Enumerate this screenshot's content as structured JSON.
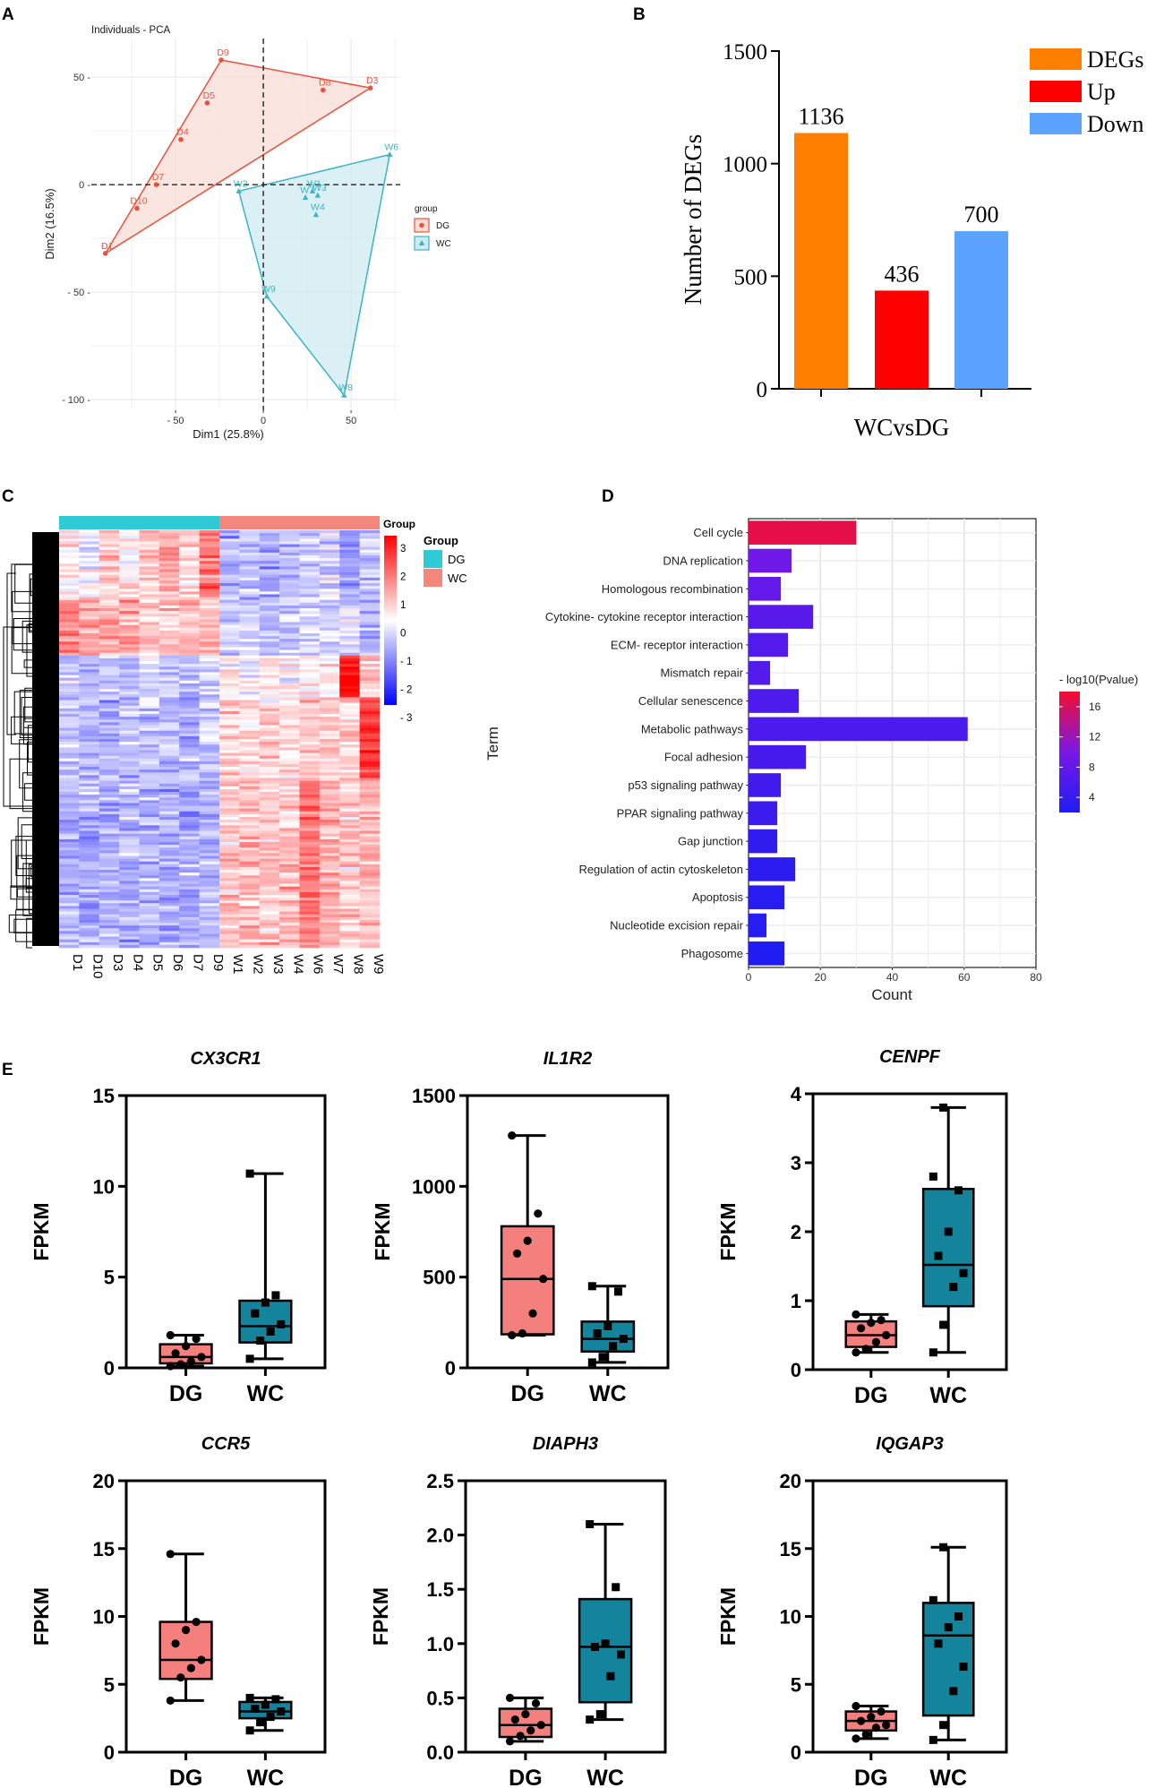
{
  "panel_labels": {
    "a": "A",
    "b": "B",
    "c": "C",
    "d": "D",
    "e": "E"
  },
  "colors": {
    "dg": "#E8533F",
    "wc": "#3BB3C8",
    "dg_fill": "#F9DCD5",
    "wc_fill": "#CDEBF1",
    "degs": "#FF7F00",
    "up": "#FF0000",
    "down": "#5BA3FF",
    "heat_dg": "#2ECBD6",
    "heat_wc": "#F3877C",
    "box_dg": "#F4807E",
    "box_wc": "#14849C"
  },
  "chart_data": [
    {
      "id": "A",
      "type": "scatter",
      "title": "Individuals - PCA",
      "xlabel": "Dim1 (25.8%)",
      "ylabel": "Dim2 (16.5%)",
      "xlim": [
        -98,
        78
      ],
      "ylim": [
        -105,
        68
      ],
      "xticks": [
        -50,
        0,
        50
      ],
      "xtick_labels": [
        "- 50",
        "0",
        "50"
      ],
      "yticks": [
        50,
        0,
        -50,
        -100
      ],
      "ytick_labels": [
        "50 -",
        "0 -",
        "- 50 -",
        "- 100 -"
      ],
      "legend_title": "group",
      "series": [
        {
          "name": "DG",
          "points": [
            {
              "label": "D1",
              "x": -90,
              "y": -32
            },
            {
              "label": "D10",
              "x": -72,
              "y": -11
            },
            {
              "label": "D7",
              "x": -61,
              "y": 0
            },
            {
              "label": "D4",
              "x": -47,
              "y": 21
            },
            {
              "label": "D5",
              "x": -32,
              "y": 38
            },
            {
              "label": "D9",
              "x": -24,
              "y": 58
            },
            {
              "label": "D8",
              "x": 34,
              "y": 44
            },
            {
              "label": "D3",
              "x": 61,
              "y": 45
            }
          ],
          "hull": [
            "D1",
            "D9",
            "D3"
          ]
        },
        {
          "name": "WC",
          "points": [
            {
              "label": "W2",
              "x": -14,
              "y": -3
            },
            {
              "label": "W6",
              "x": 72,
              "y": 14
            },
            {
              "label": "W7",
              "x": 24,
              "y": -6
            },
            {
              "label": "W1",
              "x": 28,
              "y": -3
            },
            {
              "label": "W3",
              "x": 31,
              "y": -5
            },
            {
              "label": "W4",
              "x": 30,
              "y": -14
            },
            {
              "label": "W9",
              "x": 2,
              "y": -52
            },
            {
              "label": "W8",
              "x": 46,
              "y": -98
            }
          ],
          "hull": [
            "W2",
            "W6",
            "W8",
            "W9"
          ]
        }
      ]
    },
    {
      "id": "B",
      "type": "bar",
      "categories": [
        "DEGs",
        "Up",
        "Down"
      ],
      "values": [
        1136,
        436,
        700
      ],
      "data_labels": [
        "1136",
        "436",
        "700"
      ],
      "xlabel": "WCvsDG",
      "ylabel": "Number of DEGs",
      "ylim": [
        0,
        1500
      ],
      "yticks": [
        0,
        500,
        1000,
        1500
      ],
      "ytick_labels": [
        "0",
        "500",
        "1000",
        "1500"
      ],
      "legend": [
        "DEGs",
        "Up",
        "Down"
      ]
    },
    {
      "id": "C",
      "type": "heatmap",
      "columns": [
        "D1",
        "D10",
        "D3",
        "D4",
        "D5",
        "D6",
        "D7",
        "D9",
        "W1",
        "W2",
        "W3",
        "W4",
        "W6",
        "W7",
        "W8",
        "W9"
      ],
      "groups": [
        "DG",
        "DG",
        "DG",
        "DG",
        "DG",
        "DG",
        "DG",
        "DG",
        "WC",
        "WC",
        "WC",
        "WC",
        "WC",
        "WC",
        "WC",
        "WC"
      ],
      "annotation_title": "Group",
      "legend_title": "Group",
      "legend": [
        "DG",
        "WC"
      ],
      "color_scale": {
        "min": -3,
        "max": 3,
        "ticks": [
          3,
          2,
          1,
          0,
          -1,
          -2,
          -3
        ],
        "tick_labels": [
          "3",
          "2",
          "1",
          "0",
          "- 1",
          "- 2",
          "- 3"
        ],
        "low": "#0000FF",
        "mid": "#FFFFFF",
        "high": "#FF0000"
      },
      "row_blocks": [
        {
          "share": 0.16,
          "pattern": [
            0.2,
            -0.2,
            0.6,
            0.2,
            0.7,
            0.9,
            0.4,
            1.6,
            -0.9,
            -0.8,
            -0.9,
            -0.8,
            -0.6,
            -0.5,
            -1.2,
            -0.6
          ]
        },
        {
          "share": 0.14,
          "pattern": [
            1.3,
            0.9,
            0.8,
            0.9,
            0.6,
            0.7,
            0.8,
            0.8,
            -0.5,
            -0.6,
            -0.7,
            -0.6,
            -0.5,
            -0.6,
            -0.4,
            -0.9
          ]
        },
        {
          "share": 0.1,
          "pattern": [
            -0.5,
            -0.9,
            -0.7,
            -0.8,
            -0.6,
            -0.7,
            -0.8,
            -0.5,
            0.2,
            0.0,
            0.3,
            0.1,
            0.3,
            0.4,
            2.8,
            0.5
          ]
        },
        {
          "share": 0.2,
          "pattern": [
            -0.7,
            -0.8,
            -0.9,
            -0.8,
            -0.7,
            -0.8,
            -0.9,
            -0.6,
            0.5,
            0.3,
            0.6,
            0.5,
            0.7,
            0.5,
            0.6,
            2.4
          ]
        },
        {
          "share": 0.4,
          "pattern": [
            -0.9,
            -1.0,
            -0.9,
            -0.9,
            -0.9,
            -0.9,
            -1.0,
            -0.8,
            0.7,
            0.8,
            0.6,
            0.7,
            1.6,
            0.9,
            0.6,
            0.8
          ]
        }
      ]
    },
    {
      "id": "D",
      "type": "bar",
      "orientation": "horizontal",
      "categories": [
        "Cell cycle",
        "DNA replication",
        "Homologous recombination",
        "Cytokine- cytokine receptor interaction",
        "ECM- receptor interaction",
        "Mismatch repair",
        "Cellular senescence",
        "Metabolic pathways",
        "Focal adhesion",
        "p53 signaling pathway",
        "PPAR signaling pathway",
        "Gap junction",
        "Regulation of actin cytoskeleton",
        "Apoptosis",
        "Nucleotide excision repair",
        "Phagosome"
      ],
      "values": [
        30,
        12,
        9,
        18,
        11,
        6,
        14,
        61,
        16,
        9,
        8,
        8,
        13,
        10,
        5,
        10
      ],
      "neg_log10_p": [
        17,
        9,
        8,
        7,
        6.5,
        6.5,
        6,
        5.8,
        5.5,
        5,
        4.5,
        3.6,
        3.2,
        2.8,
        2.5,
        2.2
      ],
      "xlabel": "Count",
      "ylabel": "Term",
      "xlim": [
        0,
        80
      ],
      "xticks": [
        0,
        20,
        40,
        60,
        80
      ],
      "xtick_labels": [
        "0",
        "20",
        "40",
        "60",
        "80"
      ],
      "colorbar_title": "- log10(Pvalue)",
      "colorbar_ticks": [
        16,
        12,
        8,
        4
      ],
      "colorbar_labels": [
        "16",
        "12",
        "8",
        "4"
      ],
      "colorbar_range": [
        2,
        18
      ]
    },
    {
      "id": "E",
      "type": "box",
      "ylabel": "FPKM",
      "categories": [
        "DG",
        "WC"
      ],
      "plots": [
        {
          "gene": "CX3CR1",
          "ylim": [
            0,
            15
          ],
          "yticks": [
            0,
            5,
            10,
            15
          ],
          "ytick_labels": [
            "0",
            "5",
            "10",
            "15"
          ],
          "boxes": [
            {
              "min": 0.1,
              "q1": 0.25,
              "median": 0.6,
              "q3": 1.3,
              "max": 1.8,
              "points": [
                0.1,
                0.2,
                0.35,
                0.6,
                0.8,
                1.2,
                1.6,
                1.8
              ]
            },
            {
              "min": 0.5,
              "q1": 1.4,
              "median": 2.3,
              "q3": 3.7,
              "max": 10.7,
              "points": [
                0.5,
                1.5,
                2.0,
                2.4,
                3.0,
                3.6,
                4.0,
                10.7
              ]
            }
          ]
        },
        {
          "gene": "IL1R2",
          "ylim": [
            0,
            1500
          ],
          "yticks": [
            0,
            500,
            1000,
            1500
          ],
          "ytick_labels": [
            "0",
            "500",
            "1000",
            "1500"
          ],
          "boxes": [
            {
              "min": 180,
              "q1": 185,
              "median": 490,
              "q3": 780,
              "max": 1280,
              "points": [
                180,
                190,
                300,
                490,
                630,
                700,
                850,
                1280
              ]
            },
            {
              "min": 30,
              "q1": 90,
              "median": 160,
              "q3": 255,
              "max": 450,
              "points": [
                30,
                60,
                120,
                160,
                190,
                230,
                420,
                450
              ]
            }
          ]
        },
        {
          "gene": "CENPF",
          "ylim": [
            0,
            4
          ],
          "yticks": [
            0,
            1,
            2,
            3,
            4
          ],
          "ytick_labels": [
            "0",
            "1",
            "2",
            "3",
            "4"
          ],
          "boxes": [
            {
              "min": 0.25,
              "q1": 0.33,
              "median": 0.5,
              "q3": 0.7,
              "max": 0.8,
              "points": [
                0.25,
                0.3,
                0.4,
                0.5,
                0.6,
                0.68,
                0.72,
                0.8
              ]
            },
            {
              "min": 0.25,
              "q1": 0.92,
              "median": 1.52,
              "q3": 2.62,
              "max": 3.8,
              "points": [
                0.25,
                0.65,
                1.2,
                1.4,
                1.65,
                2.0,
                2.6,
                2.8,
                3.8
              ]
            }
          ]
        },
        {
          "gene": "CCR5",
          "ylim": [
            0,
            20
          ],
          "yticks": [
            0,
            5,
            10,
            15,
            20
          ],
          "ytick_labels": [
            "0",
            "5",
            "10",
            "15",
            "20"
          ],
          "boxes": [
            {
              "min": 3.8,
              "q1": 5.4,
              "median": 6.8,
              "q3": 9.6,
              "max": 14.6,
              "points": [
                3.8,
                5.5,
                6.2,
                6.8,
                8.0,
                9.0,
                9.6,
                14.6
              ]
            },
            {
              "min": 1.6,
              "q1": 2.5,
              "median": 3.0,
              "q3": 3.7,
              "max": 4.0,
              "points": [
                1.6,
                2.2,
                2.6,
                3.0,
                3.2,
                3.5,
                3.9,
                4.0
              ]
            }
          ]
        },
        {
          "gene": "DIAPH3",
          "ylim": [
            0,
            2.5
          ],
          "yticks": [
            0,
            0.5,
            1.0,
            1.5,
            2.0,
            2.5
          ],
          "ytick_labels": [
            "0.0",
            "0.5",
            "1.0",
            "1.5",
            "2.0",
            "2.5"
          ],
          "boxes": [
            {
              "min": 0.1,
              "q1": 0.14,
              "median": 0.25,
              "q3": 0.4,
              "max": 0.5,
              "points": [
                0.1,
                0.15,
                0.2,
                0.25,
                0.3,
                0.35,
                0.45,
                0.5
              ]
            },
            {
              "min": 0.3,
              "q1": 0.46,
              "median": 0.97,
              "q3": 1.41,
              "max": 2.1,
              "points": [
                0.3,
                0.35,
                0.7,
                0.9,
                0.97,
                1.0,
                1.52,
                2.1
              ]
            }
          ]
        },
        {
          "gene": "IQGAP3",
          "ylim": [
            0,
            20
          ],
          "yticks": [
            0,
            5,
            10,
            15,
            20
          ],
          "ytick_labels": [
            "0",
            "5",
            "10",
            "15",
            "20"
          ],
          "boxes": [
            {
              "min": 1.0,
              "q1": 1.6,
              "median": 2.3,
              "q3": 3.0,
              "max": 3.4,
              "points": [
                1.0,
                1.3,
                1.8,
                2.0,
                2.3,
                2.6,
                3.0,
                3.4
              ]
            },
            {
              "min": 0.9,
              "q1": 2.7,
              "median": 8.6,
              "q3": 11.0,
              "max": 15.1,
              "points": [
                0.9,
                2.0,
                4.5,
                6.3,
                8.0,
                9.2,
                10.0,
                11.2,
                15.1
              ]
            }
          ]
        }
      ]
    }
  ]
}
